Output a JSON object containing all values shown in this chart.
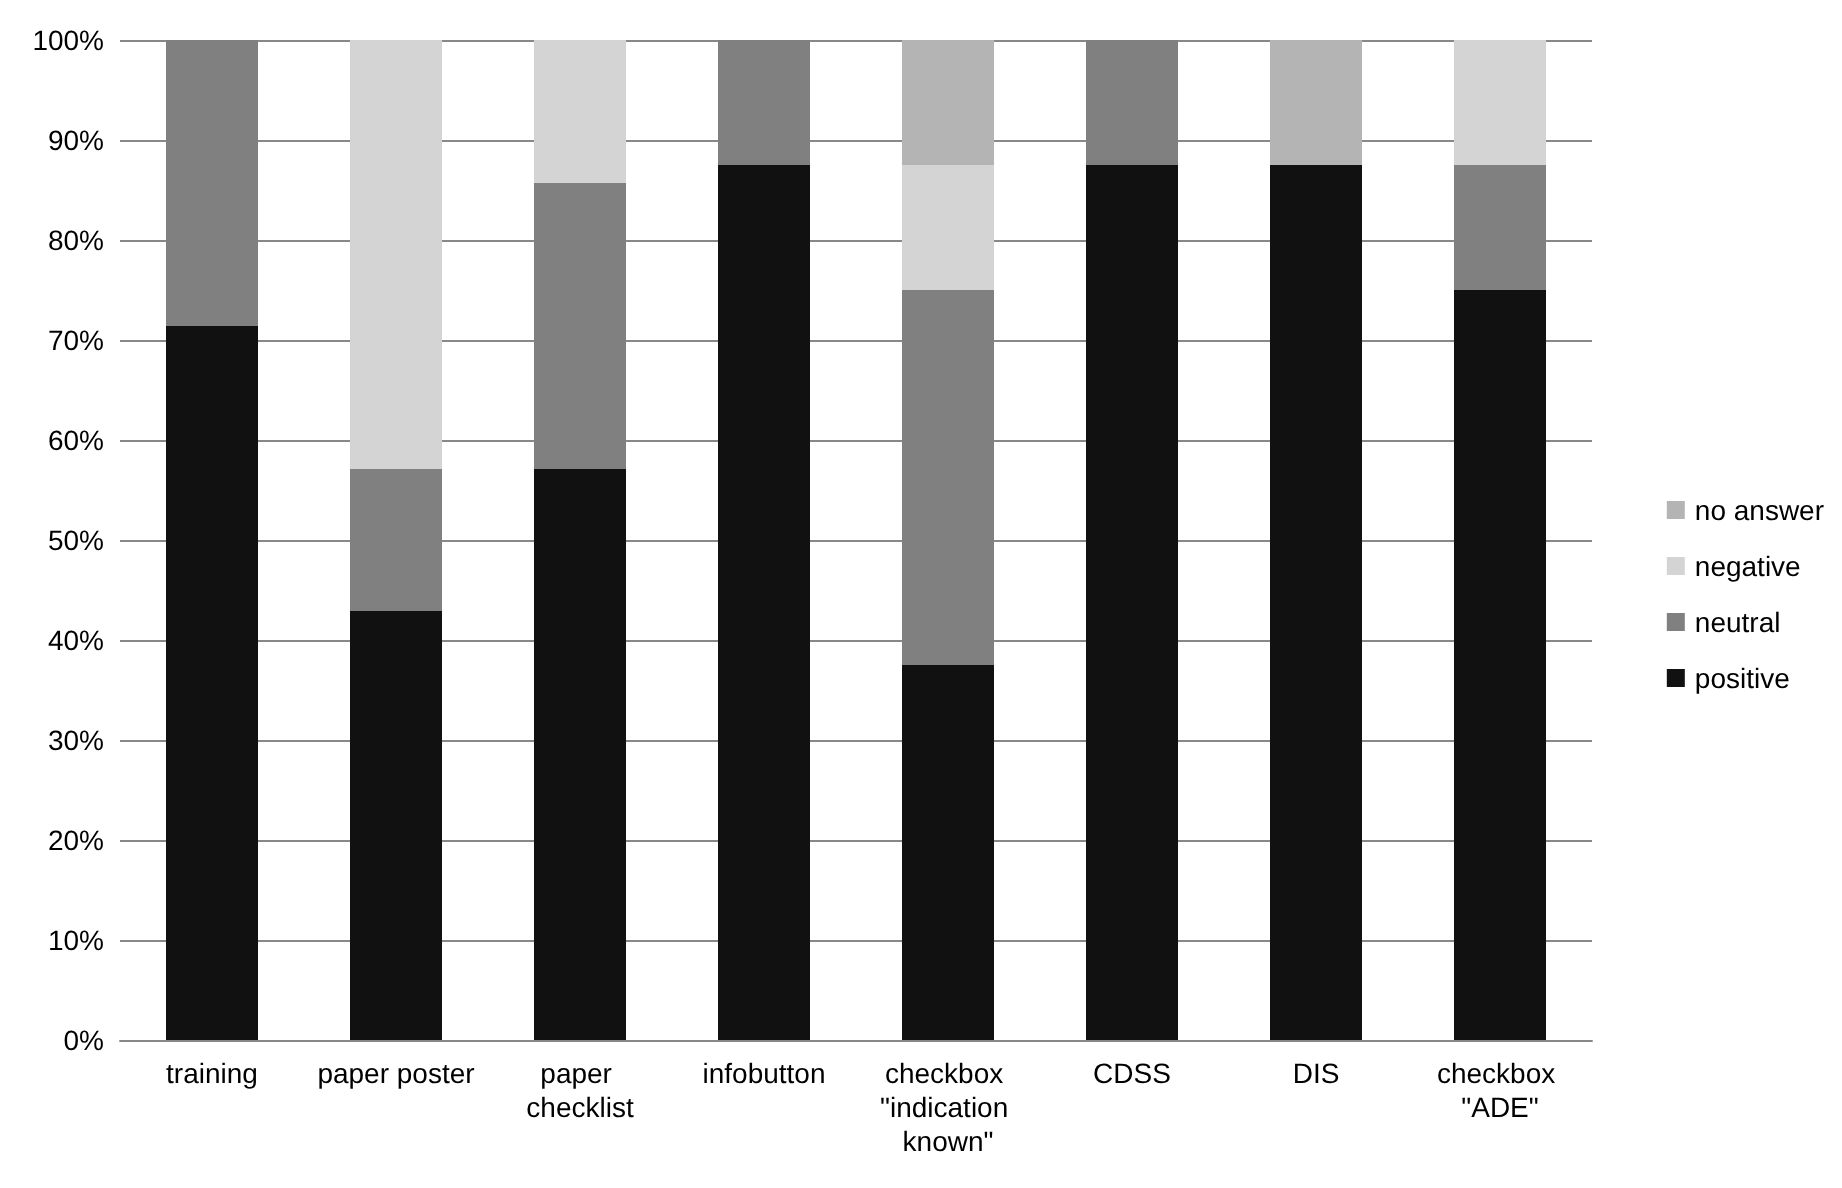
{
  "chart_data": {
    "type": "bar",
    "stacked": true,
    "categories": [
      "training",
      "paper poster",
      "paper checklist",
      "infobutton",
      "checkbox \"indication known\"",
      "CDSS",
      "DIS",
      "checkbox \"ADE\""
    ],
    "series": [
      {
        "name": "positive",
        "color": "#111111",
        "values": [
          71.4,
          42.9,
          57.1,
          87.5,
          37.5,
          87.5,
          87.5,
          75
        ]
      },
      {
        "name": "neutral",
        "color": "#808080",
        "values": [
          28.6,
          14.2,
          28.6,
          12.5,
          37.5,
          12.5,
          null,
          12.5
        ]
      },
      {
        "name": "negative",
        "color": "#d4d4d4",
        "values": [
          null,
          42.9,
          14.3,
          null,
          12.5,
          null,
          null,
          12.5
        ]
      },
      {
        "name": "no answer",
        "color": "#b4b4b4",
        "values": [
          null,
          null,
          null,
          null,
          12.5,
          null,
          12.5,
          null
        ]
      }
    ],
    "ylim": [
      0,
      100
    ],
    "yticks": [
      {
        "value": 0,
        "label": "0%"
      },
      {
        "value": 10,
        "label": "10%"
      },
      {
        "value": 20,
        "label": "20%"
      },
      {
        "value": 30,
        "label": "30%"
      },
      {
        "value": 40,
        "label": "40%"
      },
      {
        "value": 50,
        "label": "50%"
      },
      {
        "value": 60,
        "label": "60%"
      },
      {
        "value": 70,
        "label": "70%"
      },
      {
        "value": 80,
        "label": "80%"
      },
      {
        "value": 90,
        "label": "90%"
      },
      {
        "value": 100,
        "label": "100%"
      }
    ],
    "grid": "y",
    "legend": "right"
  }
}
